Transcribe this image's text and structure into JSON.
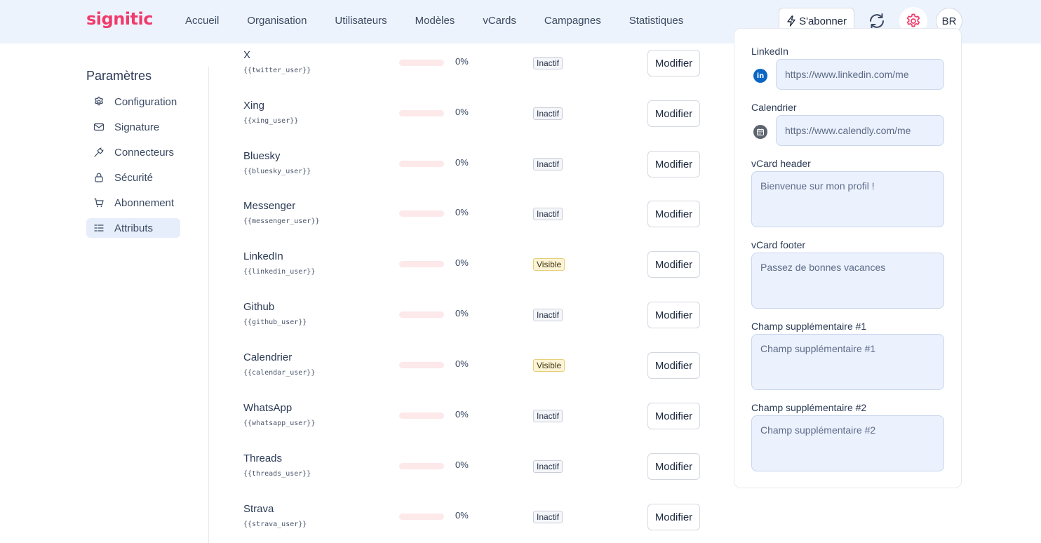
{
  "brand": {
    "name": "signitic",
    "accent": "#ef3b6b"
  },
  "nav": {
    "items": [
      "Accueil",
      "Organisation",
      "Utilisateurs",
      "Modèles",
      "vCards",
      "Campagnes",
      "Statistiques"
    ],
    "subscribe_label": "S'abonner",
    "avatar_initials": "BR"
  },
  "sidebar": {
    "title": "Paramètres",
    "items": [
      {
        "label": "Configuration",
        "icon": "gear-icon"
      },
      {
        "label": "Signature",
        "icon": "mail-icon"
      },
      {
        "label": "Connecteurs",
        "icon": "plug-icon"
      },
      {
        "label": "Sécurité",
        "icon": "lock-icon"
      },
      {
        "label": "Abonnement",
        "icon": "cart-icon"
      },
      {
        "label": "Attributs",
        "icon": "list-icon",
        "active": true
      }
    ]
  },
  "attributes": {
    "modify_label": "Modifier",
    "rows": [
      {
        "name": "X",
        "code": "{{twitter_user}}",
        "percent": "0%",
        "fill": 0,
        "status": "Inactif"
      },
      {
        "name": "Xing",
        "code": "{{xing_user}}",
        "percent": "0%",
        "fill": 0,
        "status": "Inactif"
      },
      {
        "name": "Bluesky",
        "code": "{{bluesky_user}}",
        "percent": "0%",
        "fill": 0,
        "status": "Inactif"
      },
      {
        "name": "Messenger",
        "code": "{{messenger_user}}",
        "percent": "0%",
        "fill": 0,
        "status": "Inactif"
      },
      {
        "name": "LinkedIn",
        "code": "{{linkedin_user}}",
        "percent": "0%",
        "fill": 0,
        "status": "Visible"
      },
      {
        "name": "Github",
        "code": "{{github_user}}",
        "percent": "0%",
        "fill": 0,
        "status": "Inactif"
      },
      {
        "name": "Calendrier",
        "code": "{{calendar_user}}",
        "percent": "0%",
        "fill": 0,
        "status": "Visible"
      },
      {
        "name": "WhatsApp",
        "code": "{{whatsapp_user}}",
        "percent": "0%",
        "fill": 0,
        "status": "Inactif"
      },
      {
        "name": "Threads",
        "code": "{{threads_user}}",
        "percent": "0%",
        "fill": 0,
        "status": "Inactif"
      },
      {
        "name": "Strava",
        "code": "{{strava_user}}",
        "percent": "0%",
        "fill": 0,
        "status": "Inactif"
      }
    ]
  },
  "preview_form": {
    "linkedin": {
      "label": "LinkedIn",
      "placeholder": "https://www.linkedin.com/me"
    },
    "calendar": {
      "label": "Calendrier",
      "placeholder": "https://www.calendly.com/me"
    },
    "vcard_header": {
      "label": "vCard header",
      "placeholder": "Bienvenue sur mon profil !"
    },
    "vcard_footer": {
      "label": "vCard footer",
      "placeholder": "Passez de bonnes vacances"
    },
    "extra1": {
      "label": "Champ supplémentaire #1",
      "placeholder": "Champ supplémentaire #1"
    },
    "extra2": {
      "label": "Champ supplémentaire #2",
      "placeholder": "Champ supplémentaire #2"
    }
  }
}
